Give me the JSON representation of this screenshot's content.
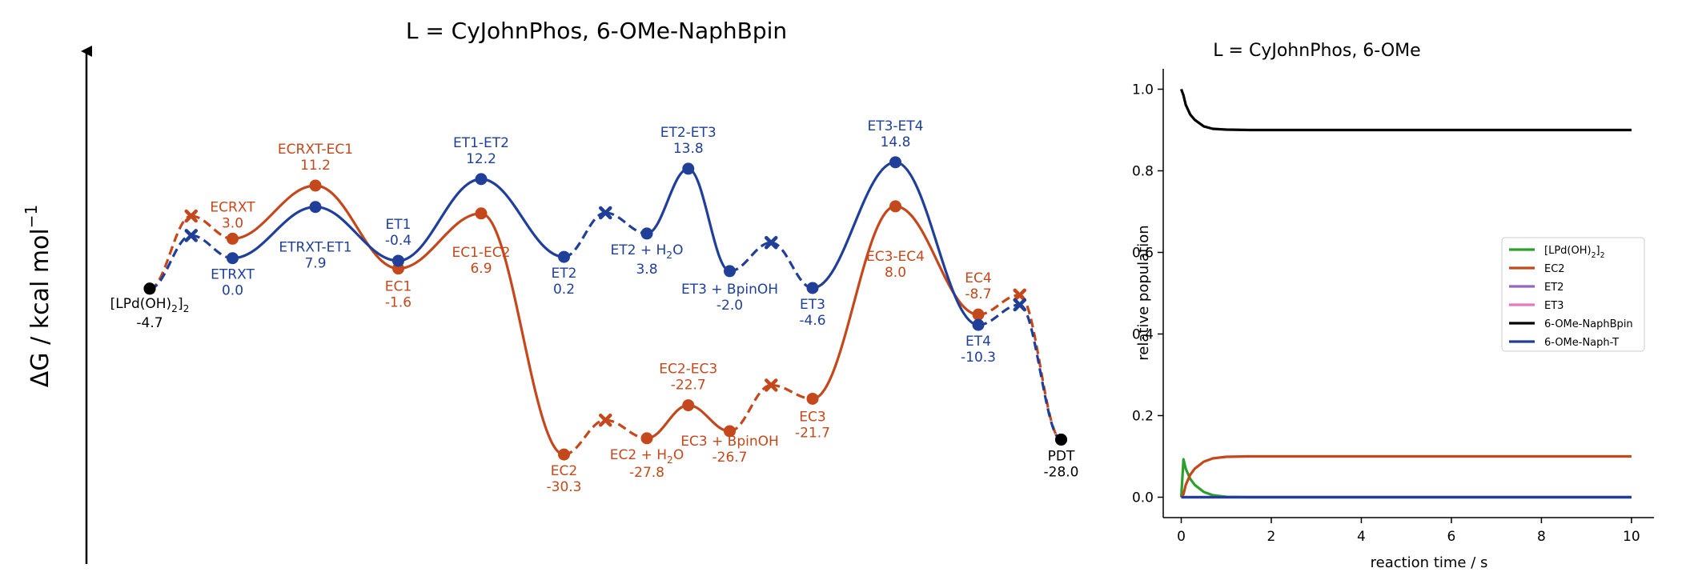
{
  "colors": {
    "c_path": "#c4481c",
    "t_path": "#1f3f99",
    "common": "#000000",
    "lpd": "#2ca02c",
    "ec2": "#c4481c",
    "et2": "#9467bd",
    "et3": "#e377c2",
    "naphbpin": "#000000",
    "napht": "#1f3f99"
  },
  "chart_data": [
    {
      "type": "line",
      "title": "L = CyJohnPhos, 6-OMe-NaphBpin",
      "ylabel": "ΔG / kcal mol",
      "ylabel_sup": "−1",
      "y_units": "kcal/mol",
      "series": [
        {
          "path": "C",
          "points": [
            {
              "x": 0,
              "y": -4.7,
              "kind": "min",
              "label": "[LPd(OH)2]2",
              "value": "-4.7",
              "color": "common"
            },
            {
              "x": 0.5,
              "y": 6.5,
              "kind": "ts_approx",
              "label": "",
              "value": ""
            },
            {
              "x": 1,
              "y": 3.0,
              "kind": "min",
              "label": "ECRXT",
              "value": "3.0"
            },
            {
              "x": 2,
              "y": 11.2,
              "kind": "ts",
              "label": "ECRXT-EC1",
              "value": "11.2"
            },
            {
              "x": 3,
              "y": -1.6,
              "kind": "min",
              "label": "EC1",
              "value": "-1.6"
            },
            {
              "x": 4,
              "y": 6.9,
              "kind": "ts",
              "label": "EC1-EC2",
              "value": "6.9"
            },
            {
              "x": 5,
              "y": -30.3,
              "kind": "min",
              "label": "EC2",
              "value": "-30.3"
            },
            {
              "x": 5.5,
              "y": -25.0,
              "kind": "ts_approx",
              "label": "",
              "value": ""
            },
            {
              "x": 6,
              "y": -27.8,
              "kind": "min",
              "label": "EC2 + H2O",
              "value": "-27.8"
            },
            {
              "x": 6.5,
              "y": -22.7,
              "kind": "ts",
              "label": "EC2-EC3",
              "value": "-22.7"
            },
            {
              "x": 7,
              "y": -26.7,
              "kind": "min",
              "label": "EC3 + BpinOH",
              "value": "-26.7"
            },
            {
              "x": 7.5,
              "y": -19.6,
              "kind": "ts_approx",
              "label": "",
              "value": ""
            },
            {
              "x": 8,
              "y": -21.7,
              "kind": "min",
              "label": "EC3",
              "value": "-21.7"
            },
            {
              "x": 9,
              "y": 8.0,
              "kind": "ts",
              "label": "EC3-EC4",
              "value": "8.0"
            },
            {
              "x": 10,
              "y": -8.7,
              "kind": "min",
              "label": "EC4",
              "value": "-8.7"
            },
            {
              "x": 10.5,
              "y": -5.7,
              "kind": "ts_approx",
              "label": "",
              "value": ""
            },
            {
              "x": 11,
              "y": -28.0,
              "kind": "min",
              "label": "PDT",
              "value": "-28.0",
              "color": "common"
            }
          ]
        },
        {
          "path": "T",
          "points": [
            {
              "x": 0,
              "y": -4.7,
              "kind": "min",
              "label": "",
              "value": "",
              "color": "common"
            },
            {
              "x": 0.5,
              "y": 3.5,
              "kind": "ts_approx",
              "label": "",
              "value": ""
            },
            {
              "x": 1,
              "y": 0.0,
              "kind": "min",
              "label": "ETRXT",
              "value": "0.0"
            },
            {
              "x": 2,
              "y": 7.9,
              "kind": "ts",
              "label": "ETRXT-ET1",
              "value": "7.9"
            },
            {
              "x": 3,
              "y": -0.4,
              "kind": "min",
              "label": "ET1",
              "value": "-0.4"
            },
            {
              "x": 4,
              "y": 12.2,
              "kind": "ts",
              "label": "ET1-ET2",
              "value": "12.2"
            },
            {
              "x": 5,
              "y": 0.2,
              "kind": "min",
              "label": "ET2",
              "value": "0.2"
            },
            {
              "x": 5.5,
              "y": 7.0,
              "kind": "ts_approx",
              "label": "",
              "value": ""
            },
            {
              "x": 6,
              "y": 3.8,
              "kind": "min",
              "label": "ET2 + H2O",
              "value": "3.8"
            },
            {
              "x": 6.5,
              "y": 13.8,
              "kind": "ts",
              "label": "ET2-ET3",
              "value": "13.8"
            },
            {
              "x": 7,
              "y": -2.0,
              "kind": "min",
              "label": "ET3 + BpinOH",
              "value": "-2.0"
            },
            {
              "x": 7.5,
              "y": 2.4,
              "kind": "ts_approx",
              "label": "",
              "value": ""
            },
            {
              "x": 8,
              "y": -4.6,
              "kind": "min",
              "label": "ET3",
              "value": "-4.6"
            },
            {
              "x": 9,
              "y": 14.8,
              "kind": "ts",
              "label": "ET3-ET4",
              "value": "14.8"
            },
            {
              "x": 10,
              "y": -10.3,
              "kind": "min",
              "label": "ET4",
              "value": "-10.3"
            },
            {
              "x": 10.5,
              "y": -7.2,
              "kind": "ts_approx",
              "label": "",
              "value": ""
            },
            {
              "x": 11,
              "y": -28.0,
              "kind": "min",
              "label": "",
              "value": "",
              "color": "common"
            }
          ]
        }
      ]
    },
    {
      "type": "line",
      "title": "L = CyJohnPhos, 6-OMe",
      "xlabel": "reaction time / s",
      "ylabel": "relative population",
      "xlim": [
        -0.4,
        10.5
      ],
      "ylim": [
        -0.05,
        1.05
      ],
      "xticks": [
        "0",
        "2",
        "4",
        "6",
        "8",
        "10"
      ],
      "yticks": [
        "0.0",
        "0.2",
        "0.4",
        "0.6",
        "0.8",
        "1.0"
      ],
      "legend_position": "center-right",
      "series": [
        {
          "name": "[LPd(OH)2]2",
          "color": "lpd",
          "x": [
            0,
            0.05,
            0.1,
            0.2,
            0.3,
            0.5,
            0.7,
            1.0,
            1.5,
            10
          ],
          "y": [
            0,
            0.093,
            0.07,
            0.045,
            0.03,
            0.013,
            0.005,
            0.001,
            0,
            0
          ]
        },
        {
          "name": "EC2",
          "color": "ec2",
          "x": [
            0,
            0.05,
            0.1,
            0.2,
            0.3,
            0.5,
            0.7,
            1.0,
            1.5,
            10
          ],
          "y": [
            0,
            0.007,
            0.03,
            0.055,
            0.07,
            0.087,
            0.095,
            0.099,
            0.1,
            0.1
          ]
        },
        {
          "name": "ET2",
          "color": "et2",
          "x": [
            0,
            10
          ],
          "y": [
            0,
            0
          ]
        },
        {
          "name": "ET3",
          "color": "et3",
          "x": [
            0,
            10
          ],
          "y": [
            0,
            0
          ]
        },
        {
          "name": "6-OMe-NaphBpin",
          "color": "naphbpin",
          "x": [
            0,
            0.05,
            0.1,
            0.2,
            0.3,
            0.5,
            0.7,
            1.0,
            1.5,
            10
          ],
          "y": [
            1.0,
            0.985,
            0.962,
            0.938,
            0.925,
            0.909,
            0.903,
            0.901,
            0.9,
            0.9
          ]
        },
        {
          "name": "6-OMe-Naph-T",
          "color": "napht",
          "x": [
            0,
            10
          ],
          "y": [
            0,
            0
          ]
        }
      ]
    }
  ]
}
